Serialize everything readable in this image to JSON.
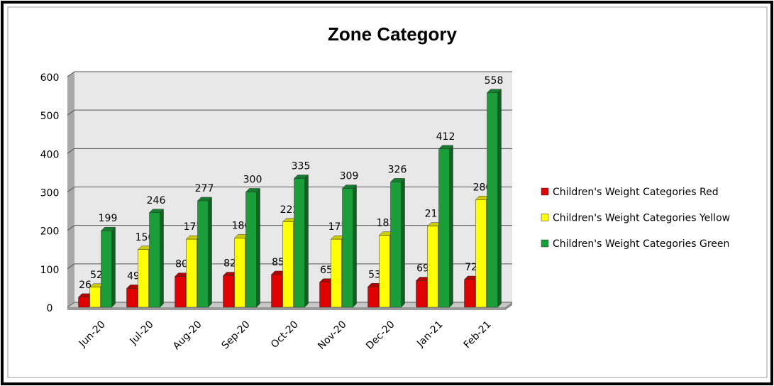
{
  "chart_data": {
    "type": "bar3d",
    "title": "Zone Category",
    "categories": [
      "Jun-20",
      "Jul-20",
      "Aug-20",
      "Sep-20",
      "Oct-20",
      "Nov-20",
      "Dec-20",
      "Jan-21",
      "Feb-21"
    ],
    "series": [
      {
        "name": "Children's Weight Categories Red",
        "color": "#e00000",
        "values": [
          26,
          49,
          80,
          82,
          85,
          65,
          53,
          69,
          72
        ]
      },
      {
        "name": "Children's Weight Categories Yellow",
        "color": "#ffff00",
        "values": [
          52,
          150,
          177,
          180,
          222,
          177,
          187,
          211,
          280
        ]
      },
      {
        "name": "Children's Weight Categories Green",
        "color": "#1a9e3a",
        "values": [
          199,
          246,
          277,
          300,
          335,
          309,
          326,
          412,
          558
        ]
      }
    ],
    "ylim": [
      0,
      600
    ],
    "yticks": [
      0,
      100,
      200,
      300,
      400,
      500,
      600
    ],
    "grid": true,
    "legend": "right"
  }
}
